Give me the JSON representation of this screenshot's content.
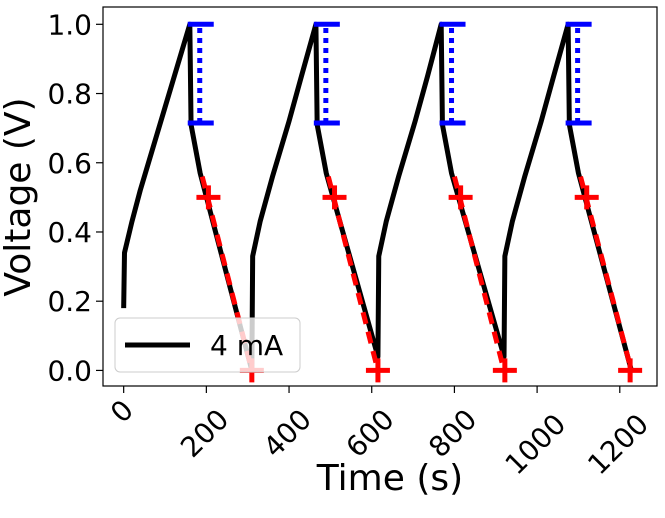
{
  "chart_data": {
    "type": "line",
    "xlabel": "Time (s)",
    "ylabel": "Voltage (V)",
    "xlim": [
      -50,
      1290
    ],
    "ylim": [
      -0.045,
      1.05
    ],
    "xticks": [
      0,
      200,
      400,
      600,
      800,
      1000,
      1200
    ],
    "yticks": [
      {
        "value": 0,
        "label": "0.0"
      },
      {
        "value": 0.2,
        "label": "0.2"
      },
      {
        "value": 0.4,
        "label": "0.4"
      },
      {
        "value": 0.6,
        "label": "0.6"
      },
      {
        "value": 0.8,
        "label": "0.8"
      },
      {
        "value": 1.0,
        "label": "1.0"
      }
    ],
    "legend": "lower left",
    "series": [
      {
        "name": "4 mA",
        "color": "#000000",
        "kind": "line",
        "x": [
          0,
          2,
          20,
          40,
          60,
          80,
          100,
          120,
          140,
          160,
          163,
          185,
          310,
          312,
          330,
          360,
          400,
          430,
          465,
          468,
          490,
          615,
          617,
          635,
          665,
          705,
          735,
          768,
          771,
          793,
          920,
          922,
          940,
          970,
          1010,
          1040,
          1075,
          1078,
          1100,
          1228
        ],
        "values": [
          0.18,
          0.34,
          0.43,
          0.52,
          0.6,
          0.68,
          0.76,
          0.84,
          0.92,
          1.0,
          0.71,
          0.57,
          0.0,
          0.33,
          0.43,
          0.56,
          0.72,
          0.85,
          1.0,
          0.71,
          0.57,
          0.04,
          0.33,
          0.43,
          0.56,
          0.72,
          0.85,
          1.0,
          0.71,
          0.57,
          0.04,
          0.33,
          0.43,
          0.56,
          0.72,
          0.85,
          1.0,
          0.71,
          0.57,
          0.0
        ]
      },
      {
        "color": "#ff0000",
        "kind": "dashed",
        "x": [
          190,
          310,
          null,
          495,
          615,
          null,
          800,
          920,
          null,
          1105,
          1228
        ],
        "values": [
          0.56,
          0.0,
          null,
          0.56,
          0.0,
          null,
          0.56,
          0.0,
          null,
          0.56,
          0.0
        ]
      },
      {
        "color": "#ff0000",
        "kind": "plus",
        "x": [
          205,
          310,
          510,
          615,
          815,
          922,
          1120,
          1225
        ],
        "values": [
          0.5,
          0.0,
          0.5,
          0.0,
          0.5,
          0.0,
          0.5,
          0.0
        ]
      },
      {
        "color": "#0000ff",
        "kind": "range",
        "x": [
          184,
          489,
          793,
          1098
        ],
        "low": [
          0.715,
          0.715,
          0.715,
          0.715
        ],
        "high": [
          1.0,
          1.0,
          1.0,
          1.0
        ]
      }
    ]
  }
}
